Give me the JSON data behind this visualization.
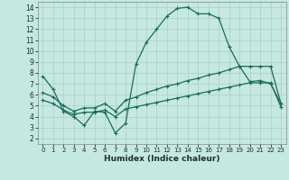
{
  "xlabel": "Humidex (Indice chaleur)",
  "background_color": "#c5e8e0",
  "grid_color": "#a8cfc8",
  "line_color": "#1a6b5a",
  "xlim": [
    -0.5,
    23.5
  ],
  "ylim": [
    1.5,
    14.5
  ],
  "yticks": [
    2,
    3,
    4,
    5,
    6,
    7,
    8,
    9,
    10,
    11,
    12,
    13,
    14
  ],
  "xticks": [
    0,
    1,
    2,
    3,
    4,
    5,
    6,
    7,
    8,
    9,
    10,
    11,
    12,
    13,
    14,
    15,
    16,
    17,
    18,
    19,
    20,
    21,
    22,
    23
  ],
  "line1_x": [
    0,
    1,
    2,
    3,
    4,
    5,
    6,
    7,
    8,
    9,
    10,
    11,
    12,
    13,
    14,
    15,
    16,
    17,
    18,
    19,
    20,
    21,
    22,
    23
  ],
  "line1_y": [
    7.7,
    6.5,
    4.5,
    4.0,
    3.2,
    4.5,
    4.4,
    2.5,
    3.4,
    8.8,
    10.8,
    12.0,
    13.2,
    13.9,
    14.0,
    13.4,
    13.4,
    13.0,
    10.4,
    8.6,
    7.2,
    7.3,
    7.0,
    5.2
  ],
  "line2_x": [
    0,
    1,
    2,
    3,
    4,
    5,
    6,
    7,
    8,
    9,
    10,
    11,
    12,
    13,
    14,
    15,
    16,
    17,
    18,
    19,
    20,
    21,
    22,
    23
  ],
  "line2_y": [
    6.2,
    5.8,
    5.0,
    4.5,
    4.8,
    4.8,
    5.2,
    4.5,
    5.5,
    5.8,
    6.2,
    6.5,
    6.8,
    7.0,
    7.3,
    7.5,
    7.8,
    8.0,
    8.3,
    8.6,
    8.6,
    8.6,
    8.6,
    5.2
  ],
  "line3_x": [
    0,
    1,
    2,
    3,
    4,
    5,
    6,
    7,
    8,
    9,
    10,
    11,
    12,
    13,
    14,
    15,
    16,
    17,
    18,
    19,
    20,
    21,
    22,
    23
  ],
  "line3_y": [
    5.5,
    5.2,
    4.6,
    4.2,
    4.4,
    4.4,
    4.6,
    4.0,
    4.7,
    4.9,
    5.1,
    5.3,
    5.5,
    5.7,
    5.9,
    6.1,
    6.3,
    6.5,
    6.7,
    6.9,
    7.1,
    7.1,
    7.1,
    4.9
  ],
  "markersize": 3,
  "linewidth": 0.9
}
